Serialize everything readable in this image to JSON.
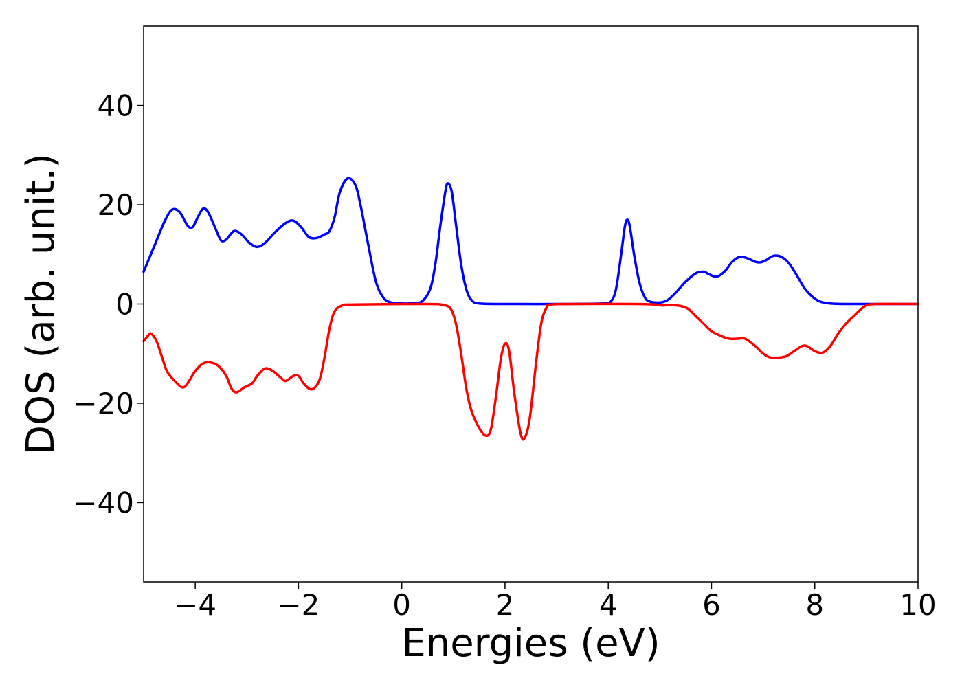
{
  "chart_data": {
    "type": "line",
    "title": "",
    "xlabel": "Energies (eV)",
    "ylabel": "DOS (arb. unit.)",
    "xlim": [
      -5,
      10
    ],
    "ylim": [
      -56,
      56
    ],
    "xticks": [
      -4,
      -2,
      0,
      2,
      4,
      6,
      8,
      10
    ],
    "yticks": [
      -40,
      -20,
      0,
      20,
      40
    ],
    "xtick_labels": [
      "−4",
      "−2",
      "0",
      "2",
      "4",
      "6",
      "8",
      "10"
    ],
    "ytick_labels": [
      "−40",
      "−20",
      "0",
      "20",
      "40"
    ],
    "grid": false,
    "legend": "none",
    "series": [
      {
        "color": "#0000ff",
        "points": [
          [
            -5.0,
            6.5
          ],
          [
            -4.8,
            11.5
          ],
          [
            -4.6,
            16.5
          ],
          [
            -4.45,
            19.0
          ],
          [
            -4.3,
            18.5
          ],
          [
            -4.15,
            15.8
          ],
          [
            -4.05,
            15.5
          ],
          [
            -3.95,
            17.5
          ],
          [
            -3.85,
            19.2
          ],
          [
            -3.75,
            18.5
          ],
          [
            -3.6,
            15.0
          ],
          [
            -3.5,
            12.8
          ],
          [
            -3.4,
            13.0
          ],
          [
            -3.25,
            14.7
          ],
          [
            -3.1,
            14.0
          ],
          [
            -2.95,
            12.3
          ],
          [
            -2.8,
            11.5
          ],
          [
            -2.65,
            12.3
          ],
          [
            -2.45,
            14.5
          ],
          [
            -2.25,
            16.3
          ],
          [
            -2.1,
            16.8
          ],
          [
            -1.95,
            15.5
          ],
          [
            -1.8,
            13.5
          ],
          [
            -1.65,
            13.3
          ],
          [
            -1.5,
            14.0
          ],
          [
            -1.4,
            14.7
          ],
          [
            -1.3,
            17.5
          ],
          [
            -1.2,
            22.5
          ],
          [
            -1.05,
            25.3
          ],
          [
            -0.9,
            24.0
          ],
          [
            -0.8,
            20.0
          ],
          [
            -0.65,
            12.0
          ],
          [
            -0.5,
            4.5
          ],
          [
            -0.35,
            1.2
          ],
          [
            -0.2,
            0.3
          ],
          [
            0.0,
            0.1
          ],
          [
            0.25,
            0.2
          ],
          [
            0.4,
            0.6
          ],
          [
            0.55,
            3.0
          ],
          [
            0.65,
            8.0
          ],
          [
            0.75,
            16.0
          ],
          [
            0.85,
            23.0
          ],
          [
            0.9,
            24.3
          ],
          [
            0.97,
            22.5
          ],
          [
            1.05,
            16.0
          ],
          [
            1.15,
            8.0
          ],
          [
            1.25,
            3.0
          ],
          [
            1.35,
            0.8
          ],
          [
            1.5,
            0.1
          ],
          [
            2.0,
            0.0
          ],
          [
            3.0,
            0.0
          ],
          [
            3.9,
            0.1
          ],
          [
            4.05,
            0.5
          ],
          [
            4.15,
            3.0
          ],
          [
            4.25,
            10.0
          ],
          [
            4.32,
            15.5
          ],
          [
            4.37,
            17.0
          ],
          [
            4.42,
            15.5
          ],
          [
            4.5,
            10.0
          ],
          [
            4.6,
            4.5
          ],
          [
            4.7,
            1.5
          ],
          [
            4.8,
            0.5
          ],
          [
            5.0,
            0.3
          ],
          [
            5.15,
            0.8
          ],
          [
            5.3,
            2.2
          ],
          [
            5.5,
            4.5
          ],
          [
            5.7,
            6.2
          ],
          [
            5.85,
            6.5
          ],
          [
            5.95,
            6.0
          ],
          [
            6.1,
            5.5
          ],
          [
            6.25,
            6.5
          ],
          [
            6.4,
            8.5
          ],
          [
            6.55,
            9.5
          ],
          [
            6.7,
            9.2
          ],
          [
            6.85,
            8.5
          ],
          [
            6.95,
            8.4
          ],
          [
            7.05,
            8.8
          ],
          [
            7.2,
            9.7
          ],
          [
            7.35,
            9.5
          ],
          [
            7.5,
            8.2
          ],
          [
            7.65,
            5.8
          ],
          [
            7.8,
            3.2
          ],
          [
            7.95,
            1.5
          ],
          [
            8.1,
            0.5
          ],
          [
            8.3,
            0.1
          ],
          [
            8.6,
            0.0
          ],
          [
            9.0,
            0.0
          ],
          [
            10.0,
            0.0
          ]
        ]
      },
      {
        "color": "#ff0000",
        "points": [
          [
            -5.0,
            -7.5
          ],
          [
            -4.9,
            -6.2
          ],
          [
            -4.85,
            -6.0
          ],
          [
            -4.75,
            -7.5
          ],
          [
            -4.65,
            -10.5
          ],
          [
            -4.55,
            -13.5
          ],
          [
            -4.4,
            -15.5
          ],
          [
            -4.25,
            -16.8
          ],
          [
            -4.15,
            -16.0
          ],
          [
            -4.0,
            -13.5
          ],
          [
            -3.85,
            -12.0
          ],
          [
            -3.7,
            -11.8
          ],
          [
            -3.55,
            -12.5
          ],
          [
            -3.4,
            -14.5
          ],
          [
            -3.3,
            -17.0
          ],
          [
            -3.2,
            -17.8
          ],
          [
            -3.05,
            -16.8
          ],
          [
            -2.9,
            -16.0
          ],
          [
            -2.8,
            -14.5
          ],
          [
            -2.65,
            -13.0
          ],
          [
            -2.5,
            -13.5
          ],
          [
            -2.35,
            -14.8
          ],
          [
            -2.25,
            -15.5
          ],
          [
            -2.1,
            -14.5
          ],
          [
            -2.0,
            -14.5
          ],
          [
            -1.9,
            -16.0
          ],
          [
            -1.75,
            -17.2
          ],
          [
            -1.6,
            -15.5
          ],
          [
            -1.5,
            -11.0
          ],
          [
            -1.4,
            -5.0
          ],
          [
            -1.3,
            -1.5
          ],
          [
            -1.15,
            -0.3
          ],
          [
            -0.9,
            -0.1
          ],
          [
            0.5,
            0.0
          ],
          [
            0.8,
            -0.2
          ],
          [
            0.95,
            -1.0
          ],
          [
            1.05,
            -4.0
          ],
          [
            1.15,
            -10.0
          ],
          [
            1.25,
            -17.0
          ],
          [
            1.35,
            -21.5
          ],
          [
            1.5,
            -25.0
          ],
          [
            1.62,
            -26.5
          ],
          [
            1.72,
            -25.5
          ],
          [
            1.82,
            -19.0
          ],
          [
            1.92,
            -11.0
          ],
          [
            2.0,
            -8.0
          ],
          [
            2.08,
            -9.5
          ],
          [
            2.18,
            -18.0
          ],
          [
            2.3,
            -26.0
          ],
          [
            2.38,
            -27.0
          ],
          [
            2.48,
            -23.0
          ],
          [
            2.6,
            -12.0
          ],
          [
            2.7,
            -4.0
          ],
          [
            2.8,
            -0.8
          ],
          [
            2.9,
            -0.1
          ],
          [
            3.5,
            0.0
          ],
          [
            4.5,
            0.0
          ],
          [
            4.9,
            -0.1
          ],
          [
            5.05,
            -0.3
          ],
          [
            5.2,
            -0.2
          ],
          [
            5.4,
            -0.4
          ],
          [
            5.55,
            -1.0
          ],
          [
            5.7,
            -2.5
          ],
          [
            5.85,
            -4.0
          ],
          [
            6.0,
            -5.5
          ],
          [
            6.2,
            -6.5
          ],
          [
            6.35,
            -7.0
          ],
          [
            6.5,
            -7.0
          ],
          [
            6.65,
            -7.0
          ],
          [
            6.85,
            -8.5
          ],
          [
            7.0,
            -10.0
          ],
          [
            7.15,
            -10.8
          ],
          [
            7.3,
            -10.8
          ],
          [
            7.45,
            -10.5
          ],
          [
            7.6,
            -9.5
          ],
          [
            7.75,
            -8.5
          ],
          [
            7.85,
            -8.5
          ],
          [
            8.0,
            -9.5
          ],
          [
            8.15,
            -9.8
          ],
          [
            8.3,
            -8.5
          ],
          [
            8.45,
            -6.0
          ],
          [
            8.6,
            -4.0
          ],
          [
            8.75,
            -2.5
          ],
          [
            8.9,
            -1.0
          ],
          [
            9.0,
            -0.3
          ],
          [
            9.2,
            0.0
          ],
          [
            10.0,
            0.0
          ]
        ]
      }
    ]
  }
}
